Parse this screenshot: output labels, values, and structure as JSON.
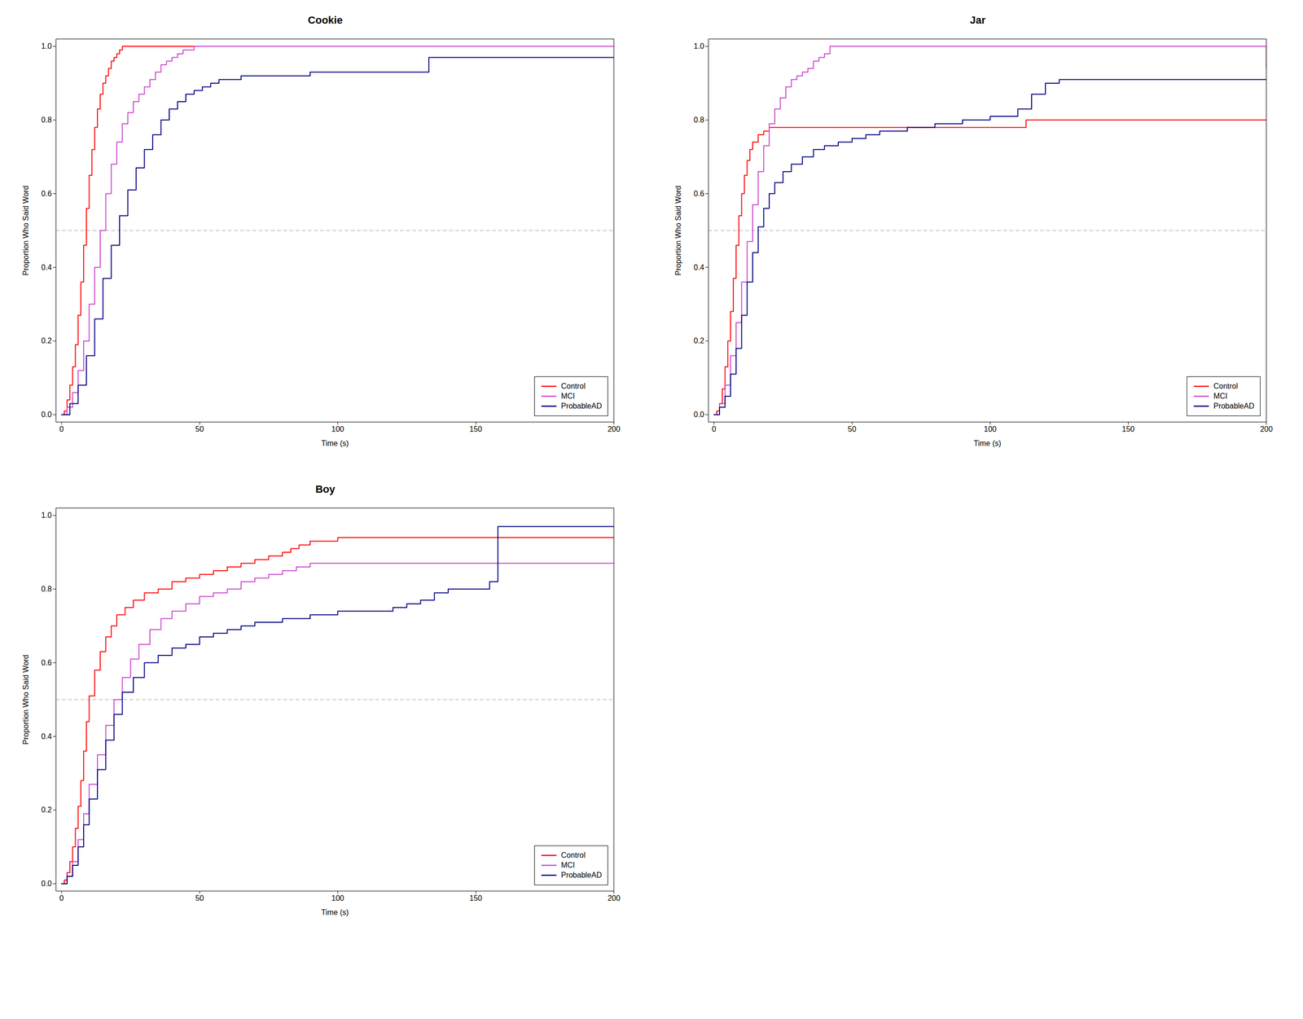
{
  "chart_data": [
    {
      "type": "step",
      "title": "Cookie",
      "xlabel": "Time (s)",
      "ylabel": "Proportion Who Said Word",
      "xlim": [
        -2,
        200
      ],
      "ylim": [
        -0.02,
        1.02
      ],
      "xticks": [
        0,
        50,
        100,
        150,
        200
      ],
      "yticks": [
        {
          "value": 0.0,
          "label": "0.0"
        },
        0.2,
        0.4,
        0.6,
        0.8,
        {
          "value": 1.0,
          "label": "1.0"
        }
      ],
      "grid": false,
      "legend": "lower right",
      "reference_lines": [
        {
          "y": 0.5,
          "color": "#BBBBBB",
          "line_style": "dashed"
        }
      ],
      "series": [
        {
          "name": "Control",
          "color": "#FF0000",
          "x": [
            0,
            1,
            2,
            3,
            4,
            5,
            6,
            7,
            8,
            9,
            10,
            11,
            12,
            13,
            14,
            15,
            16,
            17,
            18,
            19,
            20,
            21,
            22,
            23,
            24,
            25,
            26,
            27,
            28,
            200
          ],
          "values": [
            0,
            0.01,
            0.04,
            0.08,
            0.13,
            0.19,
            0.27,
            0.36,
            0.46,
            0.56,
            0.65,
            0.72,
            0.78,
            0.83,
            0.87,
            0.9,
            0.92,
            0.94,
            0.96,
            0.97,
            0.98,
            0.99,
            1.0,
            1.0,
            1.0,
            1.0,
            1.0,
            1.0,
            1.0,
            1.0
          ]
        },
        {
          "name": "MCI",
          "color": "#CC44CC",
          "x": [
            0,
            2,
            4,
            6,
            8,
            10,
            12,
            14,
            16,
            18,
            20,
            22,
            24,
            26,
            28,
            30,
            32,
            34,
            36,
            38,
            40,
            42,
            44,
            46,
            48,
            50,
            200
          ],
          "values": [
            0,
            0.02,
            0.06,
            0.12,
            0.2,
            0.3,
            0.4,
            0.5,
            0.6,
            0.68,
            0.74,
            0.79,
            0.82,
            0.85,
            0.87,
            0.89,
            0.91,
            0.93,
            0.95,
            0.96,
            0.97,
            0.98,
            0.99,
            0.99,
            1.0,
            1.0,
            1.0
          ]
        },
        {
          "name": "ProbableAD",
          "color": "#000080",
          "x": [
            0,
            3,
            6,
            9,
            12,
            15,
            18,
            21,
            24,
            27,
            30,
            33,
            36,
            39,
            42,
            45,
            48,
            51,
            54,
            57,
            60,
            65,
            70,
            80,
            90,
            100,
            110,
            120,
            130,
            133,
            200
          ],
          "values": [
            0,
            0.03,
            0.08,
            0.16,
            0.26,
            0.37,
            0.46,
            0.54,
            0.61,
            0.67,
            0.72,
            0.76,
            0.8,
            0.83,
            0.85,
            0.87,
            0.88,
            0.89,
            0.9,
            0.91,
            0.91,
            0.92,
            0.92,
            0.92,
            0.93,
            0.93,
            0.93,
            0.93,
            0.93,
            0.97,
            0.97
          ]
        }
      ]
    },
    {
      "type": "step",
      "title": "Jar",
      "xlabel": "Time (s)",
      "ylabel": "Proportion Who Said Word",
      "xlim": [
        -2,
        200
      ],
      "ylim": [
        -0.02,
        1.02
      ],
      "xticks": [
        0,
        50,
        100,
        150,
        200
      ],
      "yticks": [
        {
          "value": 0.0,
          "label": "0.0"
        },
        0.2,
        0.4,
        0.6,
        0.8,
        {
          "value": 1.0,
          "label": "1.0"
        }
      ],
      "grid": false,
      "legend": "lower right",
      "reference_lines": [
        {
          "y": 0.5,
          "color": "#BBBBBB",
          "line_style": "dashed"
        }
      ],
      "series": [
        {
          "name": "Control",
          "color": "#FF0000",
          "x": [
            0,
            1,
            2,
            3,
            4,
            5,
            6,
            7,
            8,
            9,
            10,
            11,
            12,
            13,
            14,
            16,
            18,
            20,
            22,
            25,
            28,
            32,
            36,
            40,
            110,
            113,
            200
          ],
          "values": [
            0,
            0.01,
            0.03,
            0.07,
            0.13,
            0.2,
            0.28,
            0.37,
            0.46,
            0.54,
            0.6,
            0.65,
            0.69,
            0.72,
            0.74,
            0.76,
            0.77,
            0.78,
            0.78,
            0.78,
            0.78,
            0.78,
            0.78,
            0.78,
            0.78,
            0.8,
            0.8
          ]
        },
        {
          "name": "MCI",
          "color": "#CC44CC",
          "x": [
            0,
            2,
            4,
            6,
            8,
            10,
            12,
            14,
            16,
            18,
            20,
            22,
            24,
            26,
            28,
            30,
            32,
            34,
            36,
            38,
            40,
            42,
            200
          ],
          "values": [
            0,
            0.03,
            0.08,
            0.16,
            0.25,
            0.36,
            0.47,
            0.57,
            0.66,
            0.73,
            0.79,
            0.83,
            0.86,
            0.89,
            0.91,
            0.92,
            0.93,
            0.94,
            0.96,
            0.97,
            0.98,
            1.0,
            0.94
          ]
        },
        {
          "name": "ProbableAD",
          "color": "#000080",
          "x": [
            0,
            2,
            4,
            6,
            8,
            10,
            12,
            14,
            16,
            18,
            20,
            22,
            25,
            28,
            32,
            36,
            40,
            45,
            50,
            55,
            60,
            70,
            80,
            90,
            100,
            110,
            115,
            120,
            125,
            200
          ],
          "values": [
            0,
            0.02,
            0.05,
            0.11,
            0.18,
            0.27,
            0.36,
            0.44,
            0.51,
            0.56,
            0.6,
            0.63,
            0.66,
            0.68,
            0.7,
            0.72,
            0.73,
            0.74,
            0.75,
            0.76,
            0.77,
            0.78,
            0.79,
            0.8,
            0.81,
            0.83,
            0.87,
            0.9,
            0.91,
            0.91
          ]
        }
      ]
    },
    {
      "type": "step",
      "title": "Boy",
      "xlabel": "Time (s)",
      "ylabel": "Proportion Who Said Word",
      "xlim": [
        -2,
        200
      ],
      "ylim": [
        -0.02,
        1.02
      ],
      "xticks": [
        0,
        50,
        100,
        150,
        200
      ],
      "yticks": [
        {
          "value": 0.0,
          "label": "0.0"
        },
        0.2,
        0.4,
        0.6,
        0.8,
        {
          "value": 1.0,
          "label": "1.0"
        }
      ],
      "grid": false,
      "legend": "lower right",
      "reference_lines": [
        {
          "y": 0.5,
          "color": "#BBBBBB",
          "line_style": "dashed"
        }
      ],
      "series": [
        {
          "name": "Control",
          "color": "#FF0000",
          "x": [
            0,
            1,
            2,
            3,
            4,
            5,
            6,
            7,
            8,
            9,
            10,
            12,
            14,
            16,
            18,
            20,
            23,
            26,
            30,
            35,
            40,
            45,
            50,
            55,
            60,
            65,
            70,
            75,
            80,
            83,
            86,
            90,
            95,
            100,
            120,
            125,
            200
          ],
          "values": [
            0,
            0.01,
            0.03,
            0.06,
            0.1,
            0.15,
            0.21,
            0.28,
            0.36,
            0.44,
            0.51,
            0.58,
            0.63,
            0.67,
            0.7,
            0.73,
            0.75,
            0.77,
            0.79,
            0.8,
            0.82,
            0.83,
            0.84,
            0.85,
            0.86,
            0.87,
            0.88,
            0.89,
            0.9,
            0.91,
            0.92,
            0.93,
            0.93,
            0.94,
            0.94,
            0.94,
            0.94
          ]
        },
        {
          "name": "MCI",
          "color": "#CC44CC",
          "x": [
            0,
            2,
            4,
            6,
            8,
            10,
            13,
            16,
            19,
            22,
            25,
            28,
            32,
            36,
            40,
            45,
            50,
            55,
            60,
            65,
            70,
            75,
            80,
            85,
            90,
            95,
            200
          ],
          "values": [
            0,
            0.02,
            0.06,
            0.12,
            0.19,
            0.27,
            0.35,
            0.43,
            0.5,
            0.56,
            0.61,
            0.65,
            0.69,
            0.72,
            0.74,
            0.76,
            0.78,
            0.79,
            0.8,
            0.82,
            0.83,
            0.84,
            0.85,
            0.86,
            0.87,
            0.87,
            0.87
          ]
        },
        {
          "name": "ProbableAD",
          "color": "#000080",
          "x": [
            0,
            2,
            4,
            6,
            8,
            10,
            13,
            16,
            19,
            22,
            26,
            30,
            35,
            40,
            45,
            50,
            55,
            60,
            65,
            70,
            80,
            90,
            100,
            120,
            125,
            130,
            135,
            140,
            155,
            158,
            200
          ],
          "values": [
            0,
            0.02,
            0.05,
            0.1,
            0.16,
            0.23,
            0.31,
            0.39,
            0.46,
            0.52,
            0.56,
            0.6,
            0.62,
            0.64,
            0.65,
            0.67,
            0.68,
            0.69,
            0.7,
            0.71,
            0.72,
            0.73,
            0.74,
            0.75,
            0.76,
            0.77,
            0.79,
            0.8,
            0.82,
            0.97,
            0.97
          ]
        }
      ]
    }
  ]
}
